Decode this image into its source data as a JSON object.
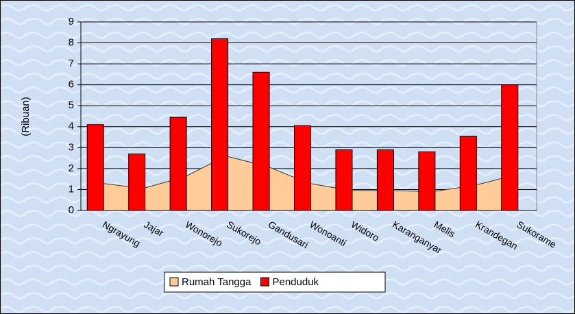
{
  "chart_data": {
    "type": "bar-area",
    "y_label": "(Ribuan)",
    "categories": [
      "Ngrayung",
      "Jajar",
      "Wonorejo",
      "Sukorejo",
      "Gandusari",
      "Wonoanti",
      "Widoro",
      "Karanganyar",
      "Melis",
      "Krandegan",
      "Sukorame"
    ],
    "series": [
      {
        "name": "Rumah Tangga",
        "type": "area",
        "color": "#ffcc99",
        "values": [
          1.3,
          1.05,
          1.6,
          2.6,
          2.1,
          1.3,
          0.95,
          0.95,
          0.9,
          1.2,
          1.7
        ]
      },
      {
        "name": "Penduduk",
        "type": "bar",
        "color": "#ff0000",
        "values": [
          4.1,
          2.7,
          4.45,
          8.2,
          6.6,
          4.05,
          2.9,
          2.9,
          2.8,
          3.55,
          6.0
        ]
      }
    ],
    "ylim": [
      0,
      9
    ],
    "yticks": [
      0,
      1,
      2,
      3,
      4,
      5,
      6,
      7,
      8,
      9
    ],
    "grid": true
  }
}
